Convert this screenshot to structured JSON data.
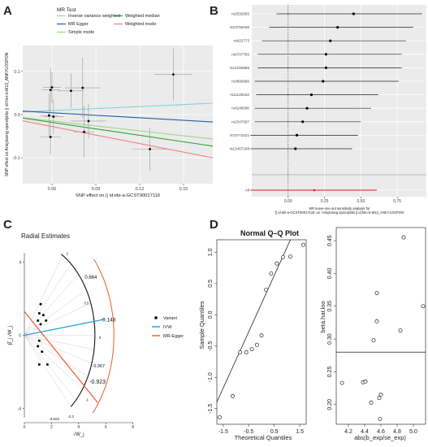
{
  "panels": {
    "A": {
      "letter": "A"
    },
    "B": {
      "letter": "B"
    },
    "C": {
      "letter": "C"
    },
    "D": {
      "letter": "D"
    }
  },
  "chart_data": [
    {
      "id": "A",
      "type": "scatter",
      "title": "",
      "xlabel": "SNP effect on  || id:ebi-a-GCST90017116",
      "ylabel": "SNP effect on Ankylosing spondylitis || id:finn-b-M13_ANKYLOSPON",
      "xlim": [
        0.04,
        0.17
      ],
      "ylim": [
        -0.16,
        0.16
      ],
      "x_ticks": [
        "0.06",
        "0.09",
        "0.12",
        "0.15"
      ],
      "x_tick_values": [
        0.06,
        0.09,
        0.12,
        0.15
      ],
      "y_ticks": [
        "-0.1",
        "0.0",
        "0.1"
      ],
      "y_tick_values": [
        -0.1,
        0.0,
        0.1
      ],
      "legend_title": "MR Test",
      "legend_position": "top",
      "legend": [
        {
          "name": "Inverse variance weighted",
          "color": "#7fd3e0"
        },
        {
          "name": "MR Egger",
          "color": "#1f5ea8"
        },
        {
          "name": "Simple mode",
          "color": "#9bd88a"
        },
        {
          "name": "Weighted median",
          "color": "#2ca02c"
        },
        {
          "name": "Weighted mode",
          "color": "#f08080"
        }
      ],
      "points": [
        {
          "x": 0.143,
          "y": 0.093,
          "xerr": 0.013,
          "yerr": 0.06
        },
        {
          "x": 0.06,
          "y": 0.063,
          "xerr": 0.006,
          "yerr": 0.035
        },
        {
          "x": 0.059,
          "y": 0.057,
          "xerr": 0.006,
          "yerr": 0.05
        },
        {
          "x": 0.073,
          "y": 0.055,
          "xerr": 0.009,
          "yerr": 0.04
        },
        {
          "x": 0.081,
          "y": 0.062,
          "xerr": 0.012,
          "yerr": 0.07
        },
        {
          "x": 0.058,
          "y": -0.002,
          "xerr": 0.006,
          "yerr": 0.05
        },
        {
          "x": 0.061,
          "y": -0.005,
          "xerr": 0.007,
          "yerr": 0.04
        },
        {
          "x": 0.085,
          "y": -0.015,
          "xerr": 0.012,
          "yerr": 0.04
        },
        {
          "x": 0.082,
          "y": -0.04,
          "xerr": 0.007,
          "yerr": 0.06
        },
        {
          "x": 0.059,
          "y": -0.052,
          "xerr": 0.007,
          "yerr": 0.04
        },
        {
          "x": 0.127,
          "y": -0.08,
          "xerr": 0.012,
          "yerr": 0.05
        }
      ],
      "lines": [
        {
          "name": "Inverse variance weighted",
          "slope": 0.155,
          "intercept": 0,
          "color": "#7fd3e0"
        },
        {
          "name": "MR Egger",
          "slope": -0.195,
          "intercept": 0.016,
          "color": "#1f5ea8"
        },
        {
          "name": "Simple mode",
          "slope": -0.38,
          "intercept": 0.008,
          "color": "#9bd88a"
        },
        {
          "name": "Weighted median",
          "slope": -0.5,
          "intercept": 0.012,
          "color": "#2ca02c"
        },
        {
          "name": "Weighted mode",
          "slope": -0.66,
          "intercept": 0.012,
          "color": "#f08080"
        }
      ]
    },
    {
      "id": "B",
      "type": "scatter",
      "subtype": "forest",
      "title": "",
      "xlabel": "MR leave-one-out sensitivity analysis for\n'|| id:ebi-a-GCST90017116' on 'Ankylosing spondylitis || id:finn-b-M13_ANKYLOSPON'",
      "xlim": [
        -0.25,
        0.95
      ],
      "x_ticks": [
        "0.00",
        "0.25",
        "0.50",
        "0.75"
      ],
      "x_tick_values": [
        0.0,
        0.25,
        0.5,
        0.75
      ],
      "rows": [
        {
          "label": "rs2532683",
          "est": 0.45,
          "lo": -0.08,
          "hi": 0.92
        },
        {
          "label": "rs10750236",
          "est": 0.34,
          "lo": -0.13,
          "hi": 0.86
        },
        {
          "label": "rs922773",
          "est": 0.29,
          "lo": -0.18,
          "hi": 0.81
        },
        {
          "label": "rs6707783",
          "est": 0.26,
          "lo": -0.21,
          "hi": 0.78
        },
        {
          "label": "rs12150885",
          "est": 0.26,
          "lo": -0.21,
          "hi": 0.78
        },
        {
          "label": "rs3890996",
          "est": 0.24,
          "lo": -0.23,
          "hi": 0.76
        },
        {
          "label": "rs11126162",
          "est": 0.16,
          "lo": -0.22,
          "hi": 0.62
        },
        {
          "label": "rs4240090",
          "est": 0.13,
          "lo": -0.23,
          "hi": 0.57
        },
        {
          "label": "rs2347597",
          "est": 0.1,
          "lo": -0.23,
          "hi": 0.5
        },
        {
          "label": "rs72771021",
          "est": 0.06,
          "lo": -0.26,
          "hi": 0.48
        },
        {
          "label": "rs12467168",
          "est": 0.05,
          "lo": -0.26,
          "hi": 0.44
        }
      ],
      "overall": {
        "label": "All",
        "est": 0.18,
        "lo": -0.26,
        "hi": 0.61,
        "color": "#e31a1c"
      }
    },
    {
      "id": "C",
      "type": "scatter",
      "subtype": "radial",
      "title": "Radial Estimates",
      "xlabel": "√W_j",
      "ylabel": "β̂_j √W_j",
      "xlim": [
        0,
        8.5
      ],
      "ylim": [
        -5,
        5
      ],
      "x_ticks": [
        "0",
        "2",
        "4",
        "6",
        "8"
      ],
      "x_tick_values": [
        0,
        2,
        4,
        6,
        8
      ],
      "y_ticks": [
        "-4",
        "0",
        "4"
      ],
      "y_tick_values": [
        -4,
        0,
        4
      ],
      "legend": [
        {
          "name": "Variant",
          "color": "#000000"
        },
        {
          "name": "IVW",
          "color": "#1da1d6"
        },
        {
          "name": "MR-Egger",
          "color": "#f05a28"
        }
      ],
      "legend_position": "right",
      "points": [
        {
          "x": 1.2,
          "y": 1.7
        },
        {
          "x": 1.1,
          "y": 1.2
        },
        {
          "x": 1.0,
          "y": 0.8
        },
        {
          "x": 1.2,
          "y": 0.6
        },
        {
          "x": 1.4,
          "y": 1.1
        },
        {
          "x": 1.6,
          "y": 0.8
        },
        {
          "x": 1.1,
          "y": -0.3
        },
        {
          "x": 1.0,
          "y": -0.6
        },
        {
          "x": 1.3,
          "y": -0.9
        },
        {
          "x": 1.1,
          "y": -1.6
        },
        {
          "x": 1.7,
          "y": -1.6
        }
      ],
      "annotations": [
        "0.664",
        "0.148",
        "-0.367",
        "-0.923",
        "2",
        "-2.3",
        "-3.822",
        "0.5",
        "0",
        "-1"
      ],
      "ivw_slope": 0.148,
      "egger_slope": -0.923,
      "egger_intercept": 1.3
    },
    {
      "id": "D1",
      "type": "scatter",
      "subtype": "qq",
      "title": "Normal Q–Q Plot",
      "xlabel": "Theoretical Quantiles",
      "ylabel": "Sample Quantiles",
      "xlim": [
        -1.75,
        1.75
      ],
      "ylim": [
        -1.75,
        1.2
      ],
      "x_ticks": [
        "-1.5",
        "-0.5",
        "0.5",
        "1.5"
      ],
      "x_tick_values": [
        -1.5,
        -0.5,
        0.5,
        1.5
      ],
      "y_ticks": [
        "-1.5",
        "-1.0",
        "-0.5",
        "0.0",
        "0.5",
        "1.0"
      ],
      "y_tick_values": [
        -1.5,
        -1.0,
        -0.5,
        0.0,
        0.5,
        1.0
      ],
      "points": [
        {
          "x": -1.64,
          "y": -1.64
        },
        {
          "x": -1.13,
          "y": -1.3
        },
        {
          "x": -0.84,
          "y": -0.6
        },
        {
          "x": -0.6,
          "y": -0.6
        },
        {
          "x": -0.38,
          "y": -0.55
        },
        {
          "x": -0.18,
          "y": -0.48
        },
        {
          "x": 0.0,
          "y": -0.33
        },
        {
          "x": 0.18,
          "y": 0.4
        },
        {
          "x": 0.38,
          "y": 0.66
        },
        {
          "x": 0.6,
          "y": 0.82
        },
        {
          "x": 0.84,
          "y": 0.92
        },
        {
          "x": 1.13,
          "y": 0.93
        },
        {
          "x": 1.64,
          "y": 1.12
        }
      ],
      "ref_line": {
        "slope": 0.9,
        "intercept": 0.18
      }
    },
    {
      "id": "D2",
      "type": "scatter",
      "title": "",
      "xlabel": "abs(b_exp/se_exp)",
      "ylabel": "beta.hat.loo",
      "xlim": [
        4.05,
        5.15
      ],
      "ylim": [
        0.17,
        0.47
      ],
      "x_ticks": [
        "4.2",
        "4.4",
        "4.6",
        "4.8",
        "5.0"
      ],
      "x_tick_values": [
        4.2,
        4.4,
        4.6,
        4.8,
        5.0
      ],
      "y_ticks": [
        "0.20",
        "0.25",
        "0.30",
        "0.35",
        "0.40",
        "0.45"
      ],
      "y_tick_values": [
        0.2,
        0.25,
        0.3,
        0.35,
        0.4,
        0.45
      ],
      "hline": 0.28,
      "points": [
        {
          "x": 4.12,
          "y": 0.233
        },
        {
          "x": 4.38,
          "y": 0.234
        },
        {
          "x": 4.41,
          "y": 0.235
        },
        {
          "x": 4.51,
          "y": 0.298
        },
        {
          "x": 4.55,
          "y": 0.327
        },
        {
          "x": 4.55,
          "y": 0.37
        },
        {
          "x": 4.48,
          "y": 0.203
        },
        {
          "x": 4.58,
          "y": 0.21
        },
        {
          "x": 4.6,
          "y": 0.215
        },
        {
          "x": 4.59,
          "y": 0.178
        },
        {
          "x": 4.84,
          "y": 0.313
        },
        {
          "x": 4.88,
          "y": 0.455
        },
        {
          "x": 5.12,
          "y": 0.35
        }
      ]
    }
  ]
}
